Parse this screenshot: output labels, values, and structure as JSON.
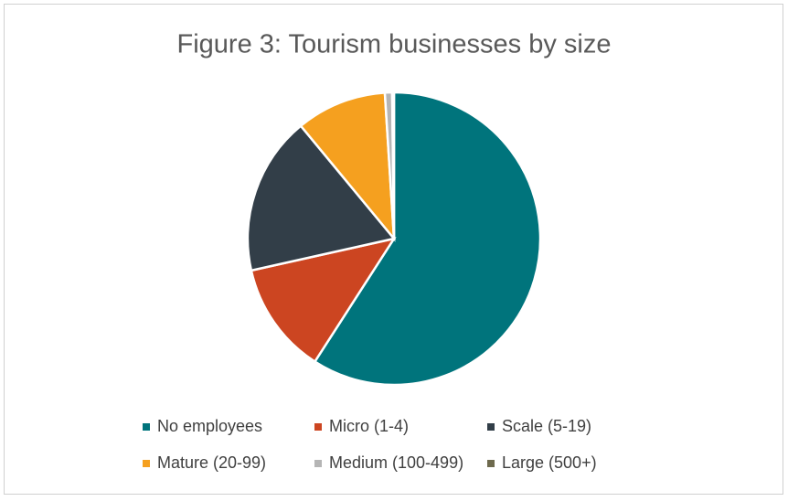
{
  "chart_data": {
    "type": "pie",
    "title": "Figure 3: Tourism businesses by size",
    "categories": [
      "No employees",
      "Micro (1-4)",
      "Scale (5-19)",
      "Mature (20-99)",
      "Medium (100-499)",
      "Large (500+)"
    ],
    "values": [
      59.1,
      12.4,
      17.5,
      10,
      0.8,
      0.2
    ],
    "colors": [
      "#00747c",
      "#cc4521",
      "#323e48",
      "#f5a01f",
      "#b5b5b5",
      "#6e6a4e"
    ],
    "legend": "bottom"
  }
}
